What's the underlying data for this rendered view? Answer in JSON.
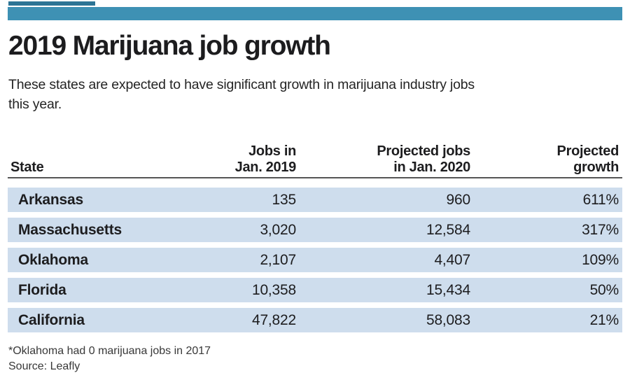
{
  "colors": {
    "accent": "#3e91b4",
    "accent_dark": "#2c7495",
    "row_bg": "#cedded"
  },
  "header": {
    "title": "2019 Marijuana job growth",
    "subtitle_lines": [
      "These states are expected to have significant growth in marijuana industry jobs",
      "this year."
    ]
  },
  "table": {
    "header": {
      "state": "State",
      "col2_line1": "Jobs in",
      "col2_line2": "Jan. 2019",
      "col3_line1": "Projected jobs",
      "col3_line2": "in Jan. 2020",
      "col4_line1": "Projected",
      "col4_line2": "growth"
    },
    "rows": [
      {
        "state": "Arkansas",
        "jobs_jan_2019": "135",
        "projected_jan_2020": "960",
        "projected_growth": "611%"
      },
      {
        "state": "Massachusetts",
        "jobs_jan_2019": "3,020",
        "projected_jan_2020": "12,584",
        "projected_growth": "317%"
      },
      {
        "state": "Oklahoma",
        "jobs_jan_2019": "2,107",
        "projected_jan_2020": "4,407",
        "projected_growth": "109%"
      },
      {
        "state": "Florida",
        "jobs_jan_2019": "10,358",
        "projected_jan_2020": "15,434",
        "projected_growth": "50%"
      },
      {
        "state": "California",
        "jobs_jan_2019": "47,822",
        "projected_jan_2020": "58,083",
        "projected_growth": "21%"
      }
    ]
  },
  "footer": {
    "note": "*Oklahoma had 0 marijuana jobs in 2017",
    "source": "Source: Leafly"
  },
  "chart_data": {
    "type": "table",
    "title": "2019 Marijuana job growth",
    "subtitle": "These states are expected to have significant growth in marijuana industry jobs this year.",
    "columns": [
      "State",
      "Jobs in Jan. 2019",
      "Projected jobs in Jan. 2020",
      "Projected growth"
    ],
    "rows": [
      [
        "Arkansas",
        135,
        960,
        "611%"
      ],
      [
        "Massachusetts",
        3020,
        12584,
        "317%"
      ],
      [
        "Oklahoma",
        2107,
        4407,
        "109%"
      ],
      [
        "Florida",
        10358,
        15434,
        "50%"
      ],
      [
        "California",
        47822,
        58083,
        "21%"
      ]
    ],
    "note": "*Oklahoma had 0 marijuana jobs in 2017",
    "source": "Leafly"
  }
}
